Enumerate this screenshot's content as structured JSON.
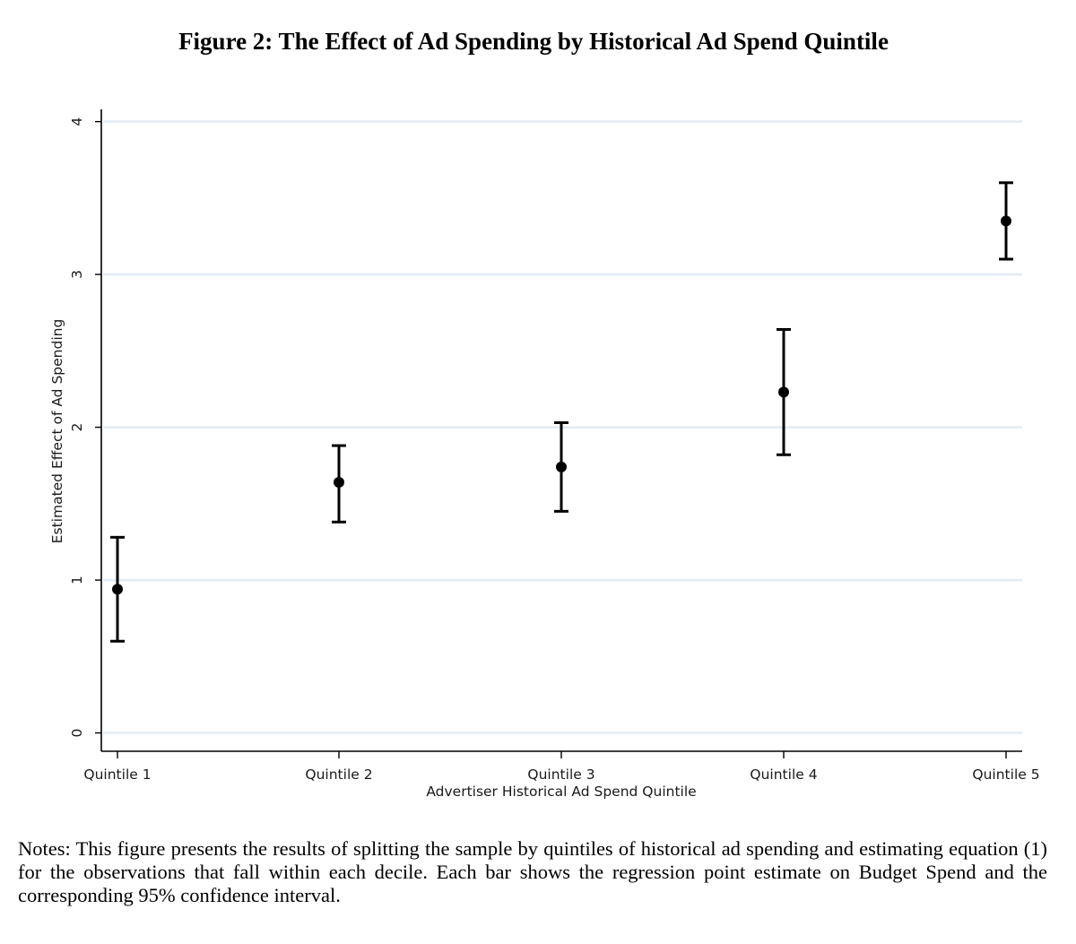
{
  "figure": {
    "title": "Figure 2: The Effect of Ad Spending by Historical Ad Spend Quintile",
    "notes": "Notes: This figure presents the results of splitting the sample by quintiles of historical ad spending and estimating equation (1) for the observations that fall within each decile. Each bar shows the regression point estimate on Budget Spend and the corresponding 95% confidence interval."
  },
  "chart_data": {
    "type": "scatter",
    "title": "",
    "xlabel": "Advertiser Historical Ad Spend Quintile",
    "ylabel": "Estimated Effect of Ad Spending",
    "categories": [
      "Quintile 1",
      "Quintile 2",
      "Quintile 3",
      "Quintile 4",
      "Quintile 5"
    ],
    "series": [
      {
        "values": [
          0.94,
          1.64,
          1.74,
          2.23,
          3.35
        ],
        "ci_low": [
          0.6,
          1.38,
          1.45,
          1.82,
          3.1
        ],
        "ci_high": [
          1.28,
          1.88,
          2.03,
          2.64,
          3.6
        ]
      }
    ],
    "yticks": [
      0,
      1,
      2,
      3,
      4
    ],
    "ylim": [
      -0.12,
      4.08
    ],
    "grid": true,
    "colors": {
      "grid": "#e3ebf3",
      "marker": "#000000",
      "axis": "#000000"
    }
  }
}
